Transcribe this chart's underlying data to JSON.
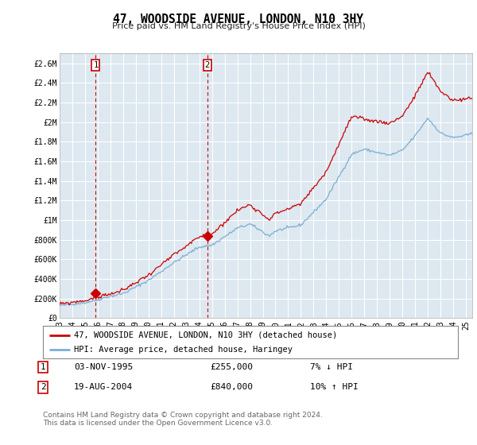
{
  "title": "47, WOODSIDE AVENUE, LONDON, N10 3HY",
  "subtitle": "Price paid vs. HM Land Registry's House Price Index (HPI)",
  "ylim": [
    0,
    2700000
  ],
  "yticks": [
    0,
    200000,
    400000,
    600000,
    800000,
    1000000,
    1200000,
    1400000,
    1600000,
    1800000,
    2000000,
    2200000,
    2400000,
    2600000
  ],
  "ytick_labels": [
    "£0",
    "£200K",
    "£400K",
    "£600K",
    "£800K",
    "£1M",
    "£1.2M",
    "£1.4M",
    "£1.6M",
    "£1.8M",
    "£2M",
    "£2.2M",
    "£2.4M",
    "£2.6M"
  ],
  "xlim_left": 1993.0,
  "xlim_right": 2025.5,
  "xticks": [
    1993,
    1994,
    1995,
    1996,
    1997,
    1998,
    1999,
    2000,
    2001,
    2002,
    2003,
    2004,
    2005,
    2006,
    2007,
    2008,
    2009,
    2010,
    2011,
    2012,
    2013,
    2014,
    2015,
    2016,
    2017,
    2018,
    2019,
    2020,
    2021,
    2022,
    2023,
    2024,
    2025
  ],
  "sale1_x": 1995.84,
  "sale1_y": 255000,
  "sale1_date": "03-NOV-1995",
  "sale1_price": "£255,000",
  "sale1_hpi": "7% ↓ HPI",
  "sale2_x": 2004.63,
  "sale2_y": 840000,
  "sale2_date": "19-AUG-2004",
  "sale2_price": "£840,000",
  "sale2_hpi": "10% ↑ HPI",
  "red_color": "#cc0000",
  "blue_color": "#7bafd4",
  "plot_bg": "#dde8f0",
  "legend_entry1": "47, WOODSIDE AVENUE, LONDON, N10 3HY (detached house)",
  "legend_entry2": "HPI: Average price, detached house, Haringey",
  "footer": "Contains HM Land Registry data © Crown copyright and database right 2024.\nThis data is licensed under the Open Government Licence v3.0.",
  "grid_color": "#ffffff",
  "spine_color": "#aaaaaa"
}
